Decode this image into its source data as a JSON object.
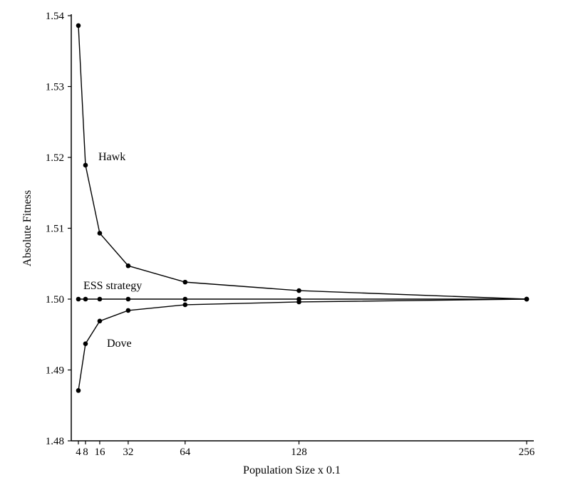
{
  "chart_data": {
    "type": "line",
    "title": "",
    "xlabel": "Population Size x 0.1",
    "ylabel": "Absolute Fitness",
    "xlim": [
      0,
      256
    ],
    "ylim": [
      1.48,
      1.54
    ],
    "x_ticks": [
      4,
      8,
      16,
      32,
      64,
      128,
      256
    ],
    "y_ticks": [
      "1.48",
      "1.49",
      "1.50",
      "1.51",
      "1.52",
      "1.53",
      "1.54"
    ],
    "grid": false,
    "x": [
      4,
      8,
      16,
      32,
      64,
      128,
      256
    ],
    "series": [
      {
        "name": "Hawk",
        "values": [
          1.5386,
          1.5189,
          1.5093,
          1.5047,
          1.5024,
          1.5012,
          1.5
        ]
      },
      {
        "name": "ESS strategy",
        "values": [
          1.5,
          1.5,
          1.5,
          1.5,
          1.5,
          1.5,
          1.5
        ]
      },
      {
        "name": "Dove",
        "values": [
          1.4871,
          1.4937,
          1.4969,
          1.4984,
          1.4992,
          1.4996,
          1.5
        ]
      }
    ]
  }
}
